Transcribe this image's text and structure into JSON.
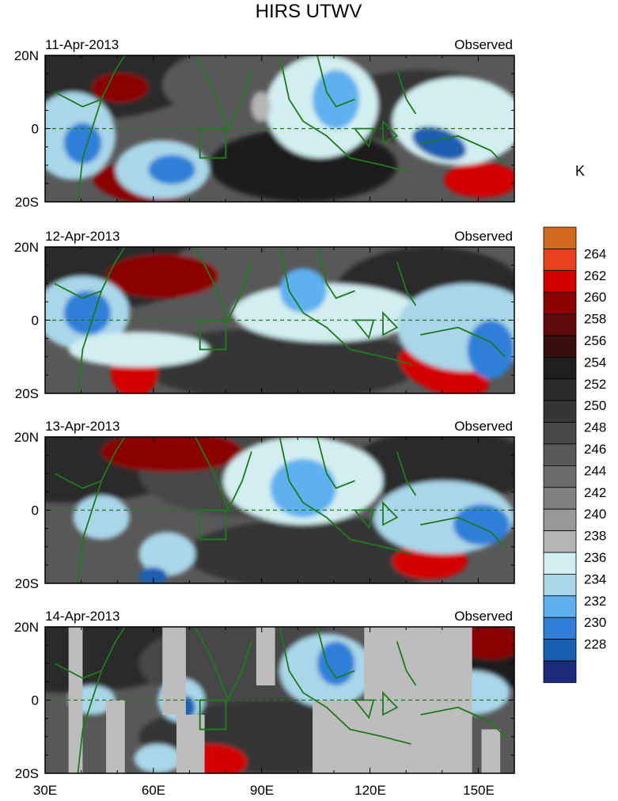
{
  "title": "HIRS UTWV",
  "unit_label": "K",
  "lon_ticks": [
    "30E",
    "60E",
    "90E",
    "120E",
    "150E"
  ],
  "lat_ticks": [
    "20N",
    "0",
    "20S"
  ],
  "panels": [
    {
      "date": "11-Apr-2013",
      "tag": "Observed"
    },
    {
      "date": "12-Apr-2013",
      "tag": "Observed"
    },
    {
      "date": "13-Apr-2013",
      "tag": "Observed"
    },
    {
      "date": "14-Apr-2013",
      "tag": "Observed"
    }
  ],
  "colorbar": {
    "labels": [
      "264",
      "262",
      "260",
      "258",
      "256",
      "254",
      "252",
      "250",
      "248",
      "246",
      "244",
      "242",
      "240",
      "238",
      "236",
      "234",
      "232",
      "230",
      "228"
    ],
    "colors": [
      "#d2691e",
      "#e8401c",
      "#d40000",
      "#8b0000",
      "#5e0a0a",
      "#3a0d0d",
      "#1e1e1e",
      "#2a2a2a",
      "#363636",
      "#474747",
      "#585858",
      "#6c6c6c",
      "#818181",
      "#989898",
      "#b4b4b4",
      "#d2eef0",
      "#a9d6e8",
      "#5fb0ef",
      "#2f7fd8",
      "#1a5fb0",
      "#1c2a7a"
    ]
  },
  "colors": {
    "coast": "#1e7a1e",
    "frame": "#000000"
  }
}
